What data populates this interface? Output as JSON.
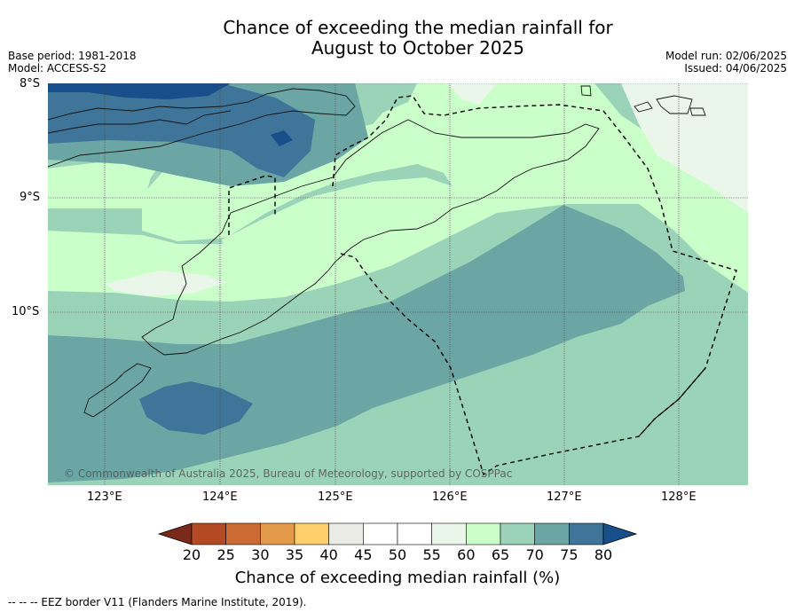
{
  "title_line1": "Chance of exceeding the median rainfall for",
  "title_line2": "August to October 2025",
  "meta_left": {
    "base_period": "Base period: 1981-2018",
    "model": "Model: ACCESS-S2"
  },
  "meta_right": {
    "model_run": "Model run: 02/06/2025",
    "issued": "Issued: 04/06/2025"
  },
  "lat_labels": [
    "8°S",
    "9°S",
    "10°S"
  ],
  "lon_labels": [
    "123°E",
    "124°E",
    "125°E",
    "126°E",
    "127°E",
    "128°E"
  ],
  "copyright": "© Commonwealth of Australia 2025, Bureau of Meteorology, supported by COSPPac",
  "colorbar": {
    "ticks": [
      "20",
      "25",
      "30",
      "35",
      "40",
      "45",
      "50",
      "55",
      "60",
      "65",
      "70",
      "75",
      "80"
    ],
    "colors": [
      "#7a2a1a",
      "#b34a24",
      "#cc6a33",
      "#e39a4b",
      "#fecf6a",
      "#ebebe6",
      "#ffffff",
      "#ffffff",
      "#eaf6e9",
      "#caffca",
      "#9bd3b8",
      "#6ba6a5",
      "#3e7599",
      "#164f8a"
    ],
    "label": "Chance of exceeding median rainfall (%)"
  },
  "footer": "--  --  -- EEZ border V11 (Flanders Marine Institute, 2019)."
}
